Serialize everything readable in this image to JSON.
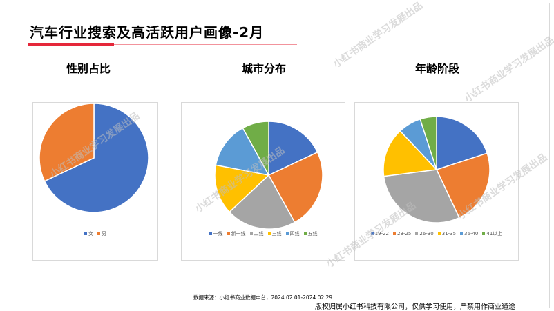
{
  "page": {
    "title": "汽车行业搜索及高活跃用户画像-2月",
    "source": "数据来源：小红书商业数据中台，2024.02.01-2024.02.29",
    "copyright": "版权归属小红书科技有限公司，仅供学习使用，严禁用作商业通途",
    "watermark_text": "小红书商业学习发展出品"
  },
  "colors": {
    "blue": "#4472c4",
    "orange": "#ed7d31",
    "grey": "#a5a5a5",
    "yellow": "#ffc000",
    "lightblue": "#5b9bd5",
    "green": "#70ad47",
    "accent_red": "#e5273a"
  },
  "chart_data": [
    {
      "type": "pie",
      "title": "性别占比",
      "categories": [
        "女",
        "男"
      ],
      "values": [
        68,
        32
      ],
      "colors": [
        "#4472c4",
        "#ed7d31"
      ],
      "legend": "bottom"
    },
    {
      "type": "pie",
      "title": "城市分布",
      "categories": [
        "一线",
        "新一线",
        "二线",
        "三线",
        "四线",
        "五线"
      ],
      "values": [
        18,
        24,
        21,
        15,
        14,
        8
      ],
      "colors": [
        "#4472c4",
        "#ed7d31",
        "#a5a5a5",
        "#ffc000",
        "#5b9bd5",
        "#70ad47"
      ],
      "legend": "bottom"
    },
    {
      "type": "pie",
      "title": "年龄阶段",
      "categories": [
        "19-22",
        "23-25",
        "26-30",
        "31-35",
        "36-40",
        "41以上"
      ],
      "values": [
        20,
        23,
        30,
        15,
        7,
        5
      ],
      "colors": [
        "#4472c4",
        "#ed7d31",
        "#a5a5a5",
        "#ffc000",
        "#5b9bd5",
        "#70ad47"
      ],
      "legend": "bottom"
    }
  ]
}
